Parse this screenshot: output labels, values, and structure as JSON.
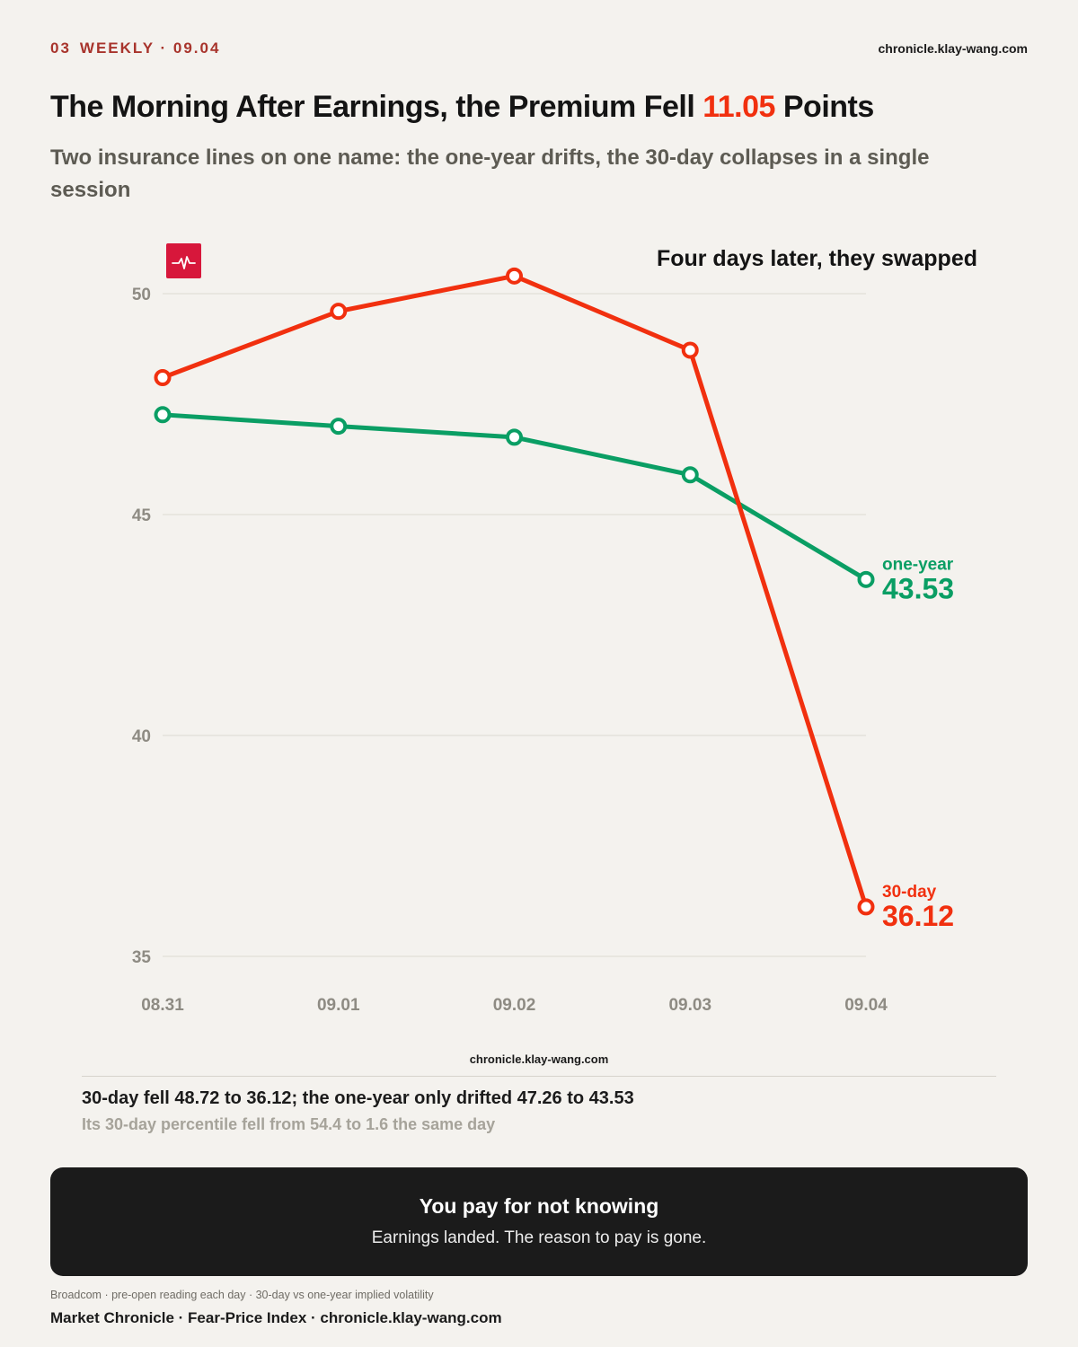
{
  "header": {
    "issue_number": "03",
    "kicker": "WEEKLY · 09.04",
    "site": "chronicle.klay-wang.com"
  },
  "headline": {
    "before": "The Morning After Earnings, the Premium Fell ",
    "highlight": "11.05",
    "after": " Points"
  },
  "subtitle": "Two insurance lines on one name: the one-year drifts, the 30-day collapses in a single session",
  "chart_data": {
    "type": "line",
    "annotation": "Four days later, they swapped",
    "categories": [
      "08.31",
      "09.01",
      "09.02",
      "09.03",
      "09.04"
    ],
    "y_ticks": [
      50,
      45,
      40,
      35
    ],
    "ylim": [
      35,
      50
    ],
    "grid": true,
    "series": [
      {
        "name": "30-day",
        "color": "#f1300f",
        "values": [
          48.1,
          49.6,
          50.4,
          48.72,
          36.12
        ],
        "end_label": "36.12"
      },
      {
        "name": "one-year",
        "color": "#0a9e64",
        "values": [
          47.26,
          47.0,
          46.75,
          45.9,
          43.53
        ],
        "end_label": "43.53"
      }
    ],
    "credit": "chronicle.klay-wang.com"
  },
  "notes": {
    "main": "30-day fell 48.72 to 36.12; the one-year only drifted 47.26 to 43.53",
    "sub": "Its 30-day percentile fell from 54.4 to 1.6 the same day"
  },
  "callout": {
    "title": "You pay for not knowing",
    "body": "Earnings landed. The reason to pay is gone."
  },
  "footer": {
    "source": "Broadcom · pre-open reading each day · 30-day vs one-year implied volatility",
    "brand": "Market Chronicle · Fear-Price Index · chronicle.klay-wang.com"
  },
  "icons": {
    "logo": "pulse-logo-icon"
  },
  "colors": {
    "accent": "#f1300f",
    "green": "#0a9e64",
    "kicker": "#a8342c"
  }
}
